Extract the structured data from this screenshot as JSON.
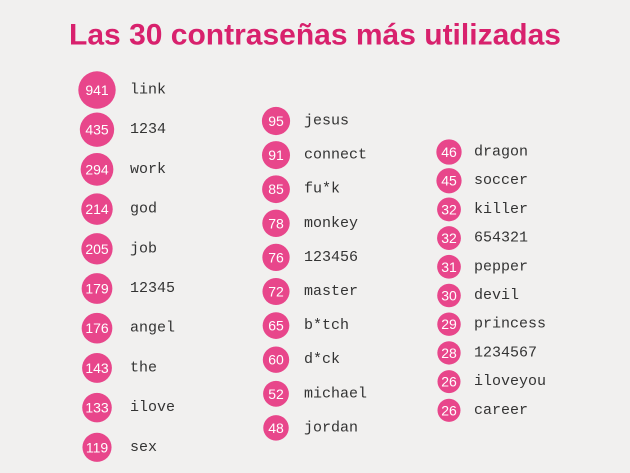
{
  "title": "Las 30 contraseñas más utilizadas",
  "columns": [
    [
      {
        "count": 941,
        "password": "link"
      },
      {
        "count": 435,
        "password": "1234"
      },
      {
        "count": 294,
        "password": "work"
      },
      {
        "count": 214,
        "password": "god"
      },
      {
        "count": 205,
        "password": "job"
      },
      {
        "count": 179,
        "password": "12345"
      },
      {
        "count": 176,
        "password": "angel"
      },
      {
        "count": 143,
        "password": "the"
      },
      {
        "count": 133,
        "password": "ilove"
      },
      {
        "count": 119,
        "password": "sex"
      }
    ],
    [
      {
        "count": 95,
        "password": "jesus"
      },
      {
        "count": 91,
        "password": "connect"
      },
      {
        "count": 85,
        "password": "fu*k"
      },
      {
        "count": 78,
        "password": "monkey"
      },
      {
        "count": 76,
        "password": "123456"
      },
      {
        "count": 72,
        "password": "master"
      },
      {
        "count": 65,
        "password": "b*tch"
      },
      {
        "count": 60,
        "password": "d*ck"
      },
      {
        "count": 52,
        "password": "michael"
      },
      {
        "count": 48,
        "password": "jordan"
      }
    ],
    [
      {
        "count": 46,
        "password": "dragon"
      },
      {
        "count": 45,
        "password": "soccer"
      },
      {
        "count": 32,
        "password": "killer"
      },
      {
        "count": 32,
        "password": "654321"
      },
      {
        "count": 31,
        "password": "pepper"
      },
      {
        "count": 30,
        "password": "devil"
      },
      {
        "count": 29,
        "password": "princess"
      },
      {
        "count": 28,
        "password": "1234567"
      },
      {
        "count": 26,
        "password": "iloveyou"
      },
      {
        "count": 26,
        "password": "career"
      }
    ]
  ]
}
